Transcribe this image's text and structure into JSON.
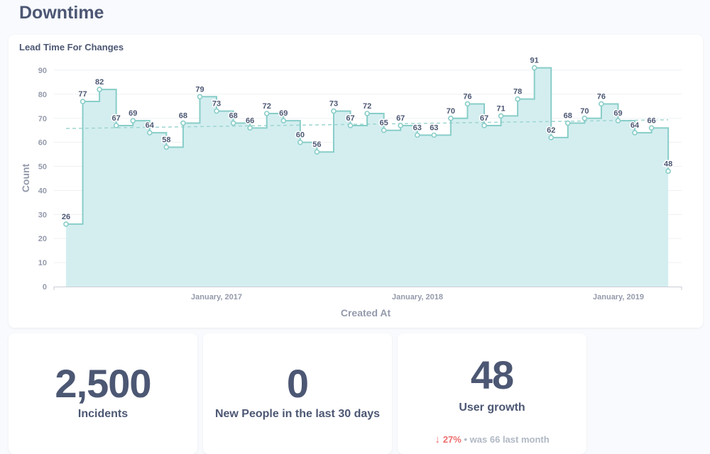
{
  "page": {
    "title": "Downtime"
  },
  "chart_card": {
    "title": "Lead Time For Changes"
  },
  "chart_data": {
    "type": "line",
    "title": "Lead Time For Changes",
    "xlabel": "Created At",
    "ylabel": "Count",
    "ylim": [
      0,
      90
    ],
    "yticks": [
      0,
      10,
      20,
      30,
      40,
      50,
      60,
      70,
      80,
      90
    ],
    "xtick_labels": [
      "January, 2017",
      "January, 2018",
      "January, 2019"
    ],
    "step": true,
    "area": true,
    "trendline": true,
    "grid": "horizontal",
    "color": "#88cdc8",
    "fill": "#d4eef0",
    "series": [
      {
        "values": [
          26,
          77,
          82,
          67,
          69,
          64,
          58,
          68,
          79,
          73,
          68,
          66,
          72,
          69,
          60,
          56,
          73,
          67,
          72,
          65,
          67,
          63,
          63,
          70,
          76,
          67,
          71,
          78,
          91,
          62,
          68,
          70,
          76,
          69,
          64,
          66,
          48
        ]
      }
    ]
  },
  "kpis": [
    {
      "value": "2,500",
      "label": "Incidents"
    },
    {
      "value": "0",
      "label": "New People in the last 30 days"
    },
    {
      "value": "48",
      "label": "User growth",
      "trend": {
        "arrow": "↓",
        "pct": "27%",
        "sep": "•",
        "was": "was 66",
        "period": "last month"
      }
    }
  ],
  "colors": {
    "accent": "#88cdc8",
    "text": "#4c5773",
    "negative": "#ed6e6e",
    "muted": "#b0b8c4"
  }
}
